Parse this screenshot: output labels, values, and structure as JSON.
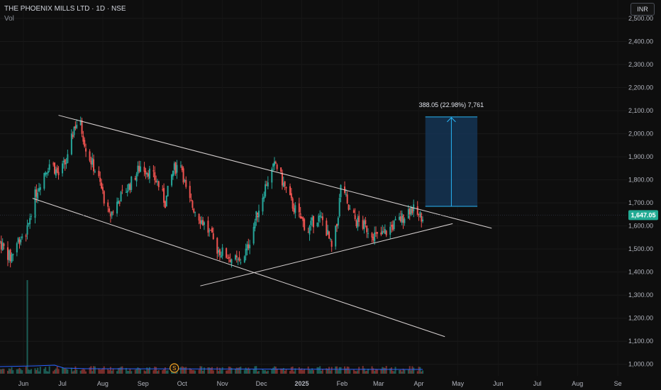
{
  "header": {
    "title": "THE PHOENIX MILLS LTD · 1D · NSE",
    "volume_label": "Vol"
  },
  "currency_button": "INR",
  "colors": {
    "background": "#0e0e0e",
    "up": "#26a69a",
    "down": "#ef5350",
    "line": "#d8d2d2",
    "measure": "#29b6f6",
    "price_badge": "#22ab94"
  },
  "chart_data": {
    "type": "candlestick",
    "title": "THE PHOENIX MILLS LTD · 1D · NSE",
    "ylim": [
      950,
      2580
    ],
    "y_ticks": [
      "1,000.00",
      "1,100.00",
      "1,200.00",
      "1,300.00",
      "1,400.00",
      "1,500.00",
      "1,600.00",
      "1,700.00",
      "1,800.00",
      "1,900.00",
      "2,000.00",
      "2,100.00",
      "2,200.00",
      "2,300.00",
      "2,400.00",
      "2,500.00"
    ],
    "y_tick_values": [
      1000,
      1100,
      1200,
      1300,
      1400,
      1500,
      1600,
      1700,
      1800,
      1900,
      2000,
      2100,
      2200,
      2300,
      2400,
      2500
    ],
    "x_ticks": [
      "Jun",
      "Jul",
      "Aug",
      "Sep",
      "Oct",
      "Nov",
      "Dec",
      "2025",
      "Feb",
      "Mar",
      "Apr",
      "May",
      "Jun",
      "Jul",
      "Aug",
      "Se"
    ],
    "x_tick_dates": [
      "2024-06-01",
      "2024-07-01",
      "2024-08-01",
      "2024-09-01",
      "2024-10-01",
      "2024-11-01",
      "2024-12-01",
      "2025-01-01",
      "2025-02-01",
      "2025-03-01",
      "2025-04-01",
      "2025-05-01",
      "2025-06-01",
      "2025-07-01",
      "2025-08-01",
      "2025-09-01"
    ],
    "x_range": [
      "2024-05-14",
      "2025-09-08"
    ],
    "last_price": "1,647.05",
    "last_price_value": 1647.05,
    "price_path": [
      [
        "2024-05-14",
        1530
      ],
      [
        "2024-05-22",
        1460
      ],
      [
        "2024-05-28",
        1540
      ],
      [
        "2024-06-04",
        1580
      ],
      [
        "2024-06-08",
        1700
      ],
      [
        "2024-06-15",
        1810
      ],
      [
        "2024-06-22",
        1880
      ],
      [
        "2024-06-28",
        1820
      ],
      [
        "2024-07-05",
        1890
      ],
      [
        "2024-07-10",
        2030
      ],
      [
        "2024-07-14",
        2060
      ],
      [
        "2024-07-20",
        1920
      ],
      [
        "2024-07-28",
        1820
      ],
      [
        "2024-08-06",
        1640
      ],
      [
        "2024-08-14",
        1720
      ],
      [
        "2024-08-22",
        1780
      ],
      [
        "2024-08-30",
        1860
      ],
      [
        "2024-09-05",
        1840
      ],
      [
        "2024-09-12",
        1790
      ],
      [
        "2024-09-18",
        1700
      ],
      [
        "2024-09-24",
        1840
      ],
      [
        "2024-09-30",
        1880
      ],
      [
        "2024-10-05",
        1720
      ],
      [
        "2024-10-12",
        1660
      ],
      [
        "2024-10-20",
        1590
      ],
      [
        "2024-10-28",
        1500
      ],
      [
        "2024-11-02",
        1480
      ],
      [
        "2024-11-08",
        1460
      ],
      [
        "2024-11-14",
        1440
      ],
      [
        "2024-11-20",
        1500
      ],
      [
        "2024-11-27",
        1640
      ],
      [
        "2024-12-05",
        1790
      ],
      [
        "2024-12-12",
        1870
      ],
      [
        "2024-12-18",
        1780
      ],
      [
        "2024-12-24",
        1700
      ],
      [
        "2024-12-30",
        1640
      ],
      [
        "2025-01-06",
        1580
      ],
      [
        "2025-01-12",
        1640
      ],
      [
        "2025-01-18",
        1620
      ],
      [
        "2025-01-24",
        1500
      ],
      [
        "2025-01-28",
        1600
      ],
      [
        "2025-02-01",
        1820
      ],
      [
        "2025-02-05",
        1680
      ],
      [
        "2025-02-12",
        1620
      ],
      [
        "2025-02-20",
        1590
      ],
      [
        "2025-02-28",
        1550
      ],
      [
        "2025-03-06",
        1570
      ],
      [
        "2025-03-12",
        1600
      ],
      [
        "2025-03-20",
        1640
      ],
      [
        "2025-03-26",
        1680
      ],
      [
        "2025-04-01",
        1640
      ],
      [
        "2025-04-04",
        1647
      ]
    ],
    "volume_spike": {
      "date": "2024-06-04"
    },
    "trendlines": [
      {
        "from": [
          "2024-06-28",
          2080
        ],
        "to": [
          "2025-05-27",
          1590
        ]
      },
      {
        "from": [
          "2024-06-08",
          1720
        ],
        "to": [
          "2025-04-21",
          1120
        ]
      },
      {
        "from": [
          "2024-10-15",
          1340
        ],
        "to": [
          "2025-04-27",
          1610
        ]
      }
    ],
    "measure": {
      "label": "388.05 (22.98%) 7,761",
      "from_date": "2025-04-06",
      "to_date": "2025-05-16",
      "low": 1685,
      "high": 2073
    },
    "dividend_marker": {
      "label": "S",
      "date": "2024-09-25"
    }
  }
}
